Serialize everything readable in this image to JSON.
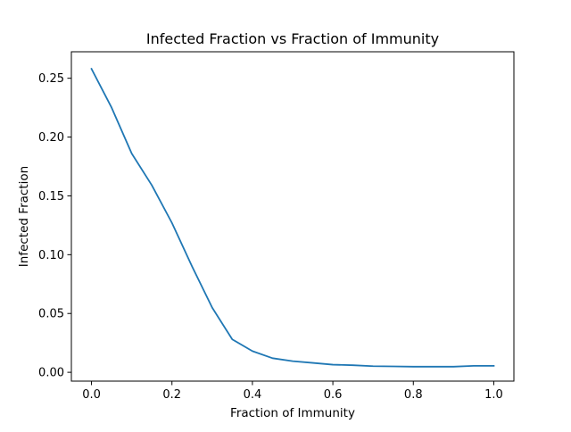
{
  "chart_data": {
    "type": "line",
    "title": "Infected Fraction vs Fraction of Immunity",
    "xlabel": "Fraction of Immunity",
    "ylabel": "Infected Fraction",
    "xlim": [
      -0.05,
      1.05
    ],
    "ylim": [
      -0.0075,
      0.2725
    ],
    "xticks": [
      0.0,
      0.2,
      0.4,
      0.6,
      0.8,
      1.0
    ],
    "xtick_labels": [
      "0.0",
      "0.2",
      "0.4",
      "0.6",
      "0.8",
      "1.0"
    ],
    "yticks": [
      0.0,
      0.05,
      0.1,
      0.15,
      0.2,
      0.25
    ],
    "ytick_labels": [
      "0.00",
      "0.05",
      "0.10",
      "0.15",
      "0.20",
      "0.25"
    ],
    "grid": false,
    "legend": "none",
    "series": [
      {
        "color": "#1f77b4",
        "x": [
          0.0,
          0.05,
          0.1,
          0.15,
          0.2,
          0.25,
          0.3,
          0.35,
          0.4,
          0.45,
          0.5,
          0.55,
          0.6,
          0.65,
          0.7,
          0.75,
          0.8,
          0.85,
          0.9,
          0.95,
          1.0
        ],
        "y": [
          0.258,
          0.225,
          0.186,
          0.159,
          0.127,
          0.09,
          0.055,
          0.028,
          0.018,
          0.012,
          0.0095,
          0.008,
          0.0065,
          0.006,
          0.0052,
          0.005,
          0.0048,
          0.0048,
          0.0048,
          0.0055,
          0.0055
        ]
      }
    ]
  }
}
